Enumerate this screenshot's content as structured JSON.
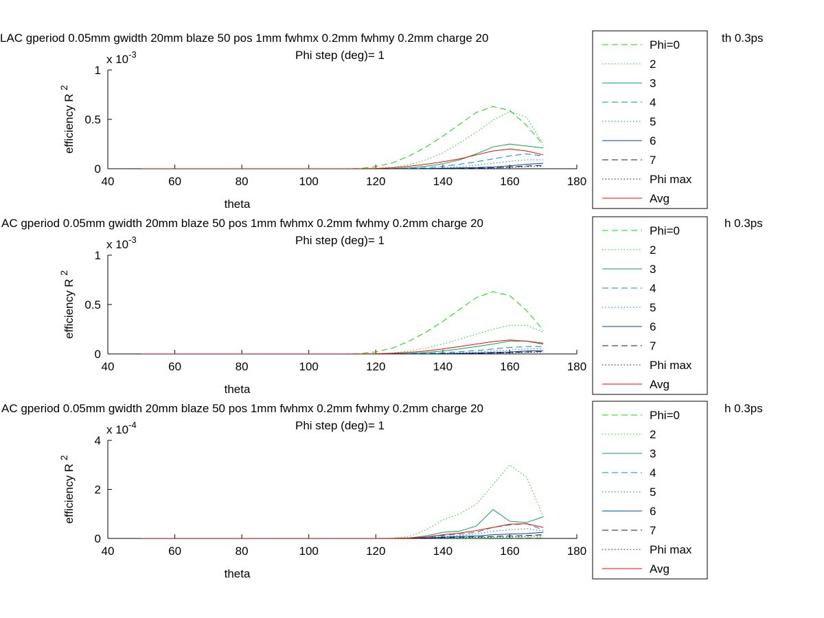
{
  "figure": {
    "background": "#ffffff"
  },
  "series_styles": {
    "Phi=0": {
      "color": "#00dd00",
      "dash": "9,5"
    },
    "2": {
      "color": "#00cc00",
      "dash": "1.5,3"
    },
    "3": {
      "color": "#00a650",
      "dash": ""
    },
    "4": {
      "color": "#0090a8",
      "dash": "9,5"
    },
    "5": {
      "color": "#0070c0",
      "dash": "1.5,3"
    },
    "6": {
      "color": "#0040a0",
      "dash": ""
    },
    "7": {
      "color": "#101060",
      "dash": "9,5"
    },
    "Phi max": {
      "color": "#000060",
      "dash": "1.5,3"
    },
    "Avg": {
      "color": "#ff0000",
      "dash": ""
    }
  },
  "chart_data": [
    {
      "type": "line",
      "title_line1": "LAC gperiod 0.05mm gwidth 20mm blaze 50 pos 1mm fwhmx 0.2mm fwhmy 0.2mm charge 20",
      "title_line1_tail": "th 0.3ps",
      "title_line2": "Phi step (deg)= 1",
      "xlabel": "theta",
      "ylabel": "efficiency R",
      "ylabel_sup": "2",
      "exponent_base": "x 10",
      "exponent_power": "-3",
      "xlim": [
        40,
        180
      ],
      "ylim": [
        0,
        1
      ],
      "xticks": [
        "40",
        "60",
        "80",
        "100",
        "120",
        "140",
        "160",
        "180"
      ],
      "yticks": [
        "0",
        "0.5",
        "1"
      ],
      "ytick_values": [
        0,
        0.5,
        1
      ],
      "legend": {
        "placement": "right",
        "entries": [
          "Phi=0",
          "2",
          "3",
          "4",
          "5",
          "6",
          "7",
          "Phi max",
          "Avg"
        ]
      },
      "x": [
        50,
        100,
        110,
        115,
        120,
        125,
        130,
        135,
        140,
        145,
        150,
        155,
        160,
        165,
        170
      ],
      "series": [
        {
          "name": "Phi=0",
          "values": [
            0,
            0,
            0,
            0.003,
            0.02,
            0.06,
            0.13,
            0.22,
            0.33,
            0.45,
            0.57,
            0.63,
            0.59,
            0.44,
            0.24
          ]
        },
        {
          "name": "2",
          "values": [
            0,
            0,
            0,
            0,
            0.004,
            0.015,
            0.04,
            0.09,
            0.16,
            0.26,
            0.37,
            0.49,
            0.58,
            0.52,
            0.25
          ]
        },
        {
          "name": "3",
          "values": [
            0,
            0,
            0,
            0,
            0,
            0.002,
            0.01,
            0.025,
            0.05,
            0.09,
            0.15,
            0.22,
            0.25,
            0.23,
            0.21
          ]
        },
        {
          "name": "4",
          "values": [
            0,
            0,
            0,
            0,
            0,
            0,
            0.003,
            0.01,
            0.025,
            0.045,
            0.07,
            0.1,
            0.13,
            0.15,
            0.13
          ]
        },
        {
          "name": "5",
          "values": [
            0,
            0,
            0,
            0,
            0,
            0,
            0.001,
            0.004,
            0.01,
            0.02,
            0.035,
            0.055,
            0.075,
            0.09,
            0.09
          ]
        },
        {
          "name": "6",
          "values": [
            0,
            0,
            0,
            0,
            0,
            0,
            0,
            0.002,
            0.004,
            0.008,
            0.012,
            0.018,
            0.03,
            0.045,
            0.055
          ]
        },
        {
          "name": "7",
          "values": [
            0,
            0,
            0,
            0,
            0,
            0,
            0,
            0.001,
            0.002,
            0.004,
            0.007,
            0.01,
            0.018,
            0.028,
            0.035
          ]
        },
        {
          "name": "Phi max",
          "values": [
            0,
            0,
            0,
            0,
            0,
            0,
            0,
            0,
            0.001,
            0.002,
            0.004,
            0.007,
            0.012,
            0.02,
            0.025
          ]
        },
        {
          "name": "Avg",
          "values": [
            0,
            0,
            0,
            0,
            0.003,
            0.01,
            0.025,
            0.045,
            0.07,
            0.1,
            0.14,
            0.18,
            0.2,
            0.18,
            0.14
          ]
        }
      ]
    },
    {
      "type": "line",
      "title_line1": "AC gperiod 0.05mm gwidth 20mm blaze 50 pos 1mm fwhmx 0.2mm fwhmy 0.2mm charge 20",
      "title_line1_tail": "h 0.3ps",
      "title_line2": "Phi step (deg)= 1",
      "xlabel": "theta",
      "ylabel": "efficiency R",
      "ylabel_sup": "2",
      "exponent_base": "x 10",
      "exponent_power": "-3",
      "xlim": [
        40,
        180
      ],
      "ylim": [
        0,
        1
      ],
      "xticks": [
        "40",
        "60",
        "80",
        "100",
        "120",
        "140",
        "160",
        "180"
      ],
      "yticks": [
        "0",
        "0.5",
        "1"
      ],
      "ytick_values": [
        0,
        0.5,
        1
      ],
      "legend": {
        "placement": "right",
        "entries": [
          "Phi=0",
          "2",
          "3",
          "4",
          "5",
          "6",
          "7",
          "Phi max",
          "Avg"
        ]
      },
      "x": [
        50,
        100,
        110,
        115,
        120,
        125,
        130,
        135,
        140,
        145,
        150,
        155,
        160,
        165,
        170
      ],
      "series": [
        {
          "name": "Phi=0",
          "values": [
            0,
            0,
            0,
            0.003,
            0.02,
            0.06,
            0.13,
            0.22,
            0.33,
            0.45,
            0.57,
            0.63,
            0.59,
            0.44,
            0.24
          ]
        },
        {
          "name": "2",
          "values": [
            0,
            0,
            0,
            0,
            0.003,
            0.01,
            0.03,
            0.06,
            0.1,
            0.15,
            0.2,
            0.25,
            0.29,
            0.29,
            0.22
          ]
        },
        {
          "name": "3",
          "values": [
            0,
            0,
            0,
            0,
            0,
            0.002,
            0.006,
            0.015,
            0.03,
            0.05,
            0.075,
            0.1,
            0.13,
            0.13,
            0.11
          ]
        },
        {
          "name": "4",
          "values": [
            0,
            0,
            0,
            0,
            0,
            0,
            0.002,
            0.006,
            0.012,
            0.022,
            0.035,
            0.05,
            0.065,
            0.075,
            0.075
          ]
        },
        {
          "name": "5",
          "values": [
            0,
            0,
            0,
            0,
            0,
            0,
            0,
            0.003,
            0.007,
            0.012,
            0.02,
            0.03,
            0.04,
            0.05,
            0.055
          ]
        },
        {
          "name": "6",
          "values": [
            0,
            0,
            0,
            0,
            0,
            0,
            0,
            0.001,
            0.003,
            0.006,
            0.01,
            0.015,
            0.02,
            0.03,
            0.035
          ]
        },
        {
          "name": "7",
          "values": [
            0,
            0,
            0,
            0,
            0,
            0,
            0,
            0,
            0.002,
            0.004,
            0.006,
            0.01,
            0.015,
            0.02,
            0.025
          ]
        },
        {
          "name": "Phi max",
          "values": [
            0,
            0,
            0,
            0,
            0,
            0,
            0,
            0,
            0.001,
            0.002,
            0.004,
            0.006,
            0.01,
            0.015,
            0.02
          ]
        },
        {
          "name": "Avg",
          "values": [
            0,
            0,
            0,
            0,
            0.002,
            0.007,
            0.017,
            0.03,
            0.05,
            0.075,
            0.1,
            0.125,
            0.14,
            0.13,
            0.1
          ]
        }
      ]
    },
    {
      "type": "line",
      "title_line1": "AC gperiod 0.05mm gwidth 20mm blaze 50 pos 1mm fwhmx 0.2mm fwhmy 0.2mm charge 20",
      "title_line1_tail": "h 0.3ps",
      "title_line2": "Phi step (deg)= 1",
      "xlabel": "theta",
      "ylabel": "efficiency R",
      "ylabel_sup": "2",
      "exponent_base": "x 10",
      "exponent_power": "-4",
      "xlim": [
        40,
        180
      ],
      "ylim": [
        0,
        4
      ],
      "xticks": [
        "40",
        "60",
        "80",
        "100",
        "120",
        "140",
        "160",
        "180"
      ],
      "yticks": [
        "0",
        "2",
        "4"
      ],
      "ytick_values": [
        0,
        2,
        4
      ],
      "legend": {
        "placement": "right",
        "entries": [
          "Phi=0",
          "2",
          "3",
          "4",
          "5",
          "6",
          "7",
          "Phi max",
          "Avg"
        ]
      },
      "x": [
        50,
        100,
        110,
        115,
        120,
        125,
        130,
        135,
        140,
        145,
        150,
        155,
        160,
        165,
        170
      ],
      "series": [
        {
          "name": "Phi=0",
          "values": [
            0,
            0,
            0,
            0,
            0,
            0,
            0,
            0,
            0.005,
            0.008,
            0.012,
            0.015,
            0.02,
            0.02,
            0.02
          ]
        },
        {
          "name": "2",
          "values": [
            0,
            0,
            0,
            0,
            0,
            0.01,
            0.08,
            0.35,
            0.75,
            1.0,
            1.4,
            2.2,
            3.0,
            2.5,
            0.9
          ]
        },
        {
          "name": "3",
          "values": [
            0,
            0,
            0,
            0,
            0,
            0,
            0.02,
            0.1,
            0.25,
            0.3,
            0.5,
            1.18,
            0.7,
            0.65,
            0.88
          ]
        },
        {
          "name": "4",
          "values": [
            0,
            0,
            0,
            0,
            0,
            0,
            0.01,
            0.05,
            0.12,
            0.18,
            0.25,
            0.45,
            0.55,
            0.6,
            0.35
          ]
        },
        {
          "name": "5",
          "values": [
            0,
            0,
            0,
            0,
            0,
            0,
            0,
            0.03,
            0.08,
            0.12,
            0.18,
            0.3,
            0.35,
            0.4,
            0.3
          ]
        },
        {
          "name": "6",
          "values": [
            0,
            0,
            0,
            0,
            0,
            0,
            0,
            0.02,
            0.05,
            0.08,
            0.1,
            0.15,
            0.18,
            0.2,
            0.25
          ]
        },
        {
          "name": "7",
          "values": [
            0,
            0,
            0,
            0,
            0,
            0,
            0,
            0.01,
            0.03,
            0.05,
            0.06,
            0.08,
            0.1,
            0.12,
            0.15
          ]
        },
        {
          "name": "Phi max",
          "values": [
            0,
            0,
            0,
            0,
            0,
            0,
            0,
            0.005,
            0.015,
            0.03,
            0.04,
            0.05,
            0.06,
            0.08,
            0.1
          ]
        },
        {
          "name": "Avg",
          "values": [
            0,
            0,
            0,
            0,
            0,
            0.004,
            0.02,
            0.06,
            0.15,
            0.22,
            0.32,
            0.45,
            0.58,
            0.6,
            0.45
          ]
        }
      ]
    }
  ]
}
